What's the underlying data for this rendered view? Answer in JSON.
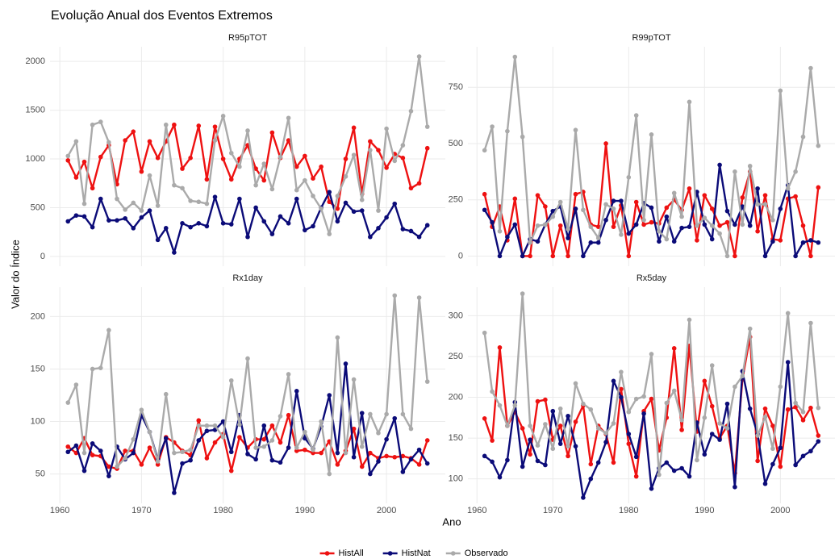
{
  "title": "Evolução Anual dos Eventos Extremos",
  "x_label": "Ano",
  "y_label": "Valor do Índice",
  "chart_data": [
    {
      "type": "line",
      "title": "R95pTOT",
      "x": [
        1961,
        1962,
        1963,
        1964,
        1965,
        1966,
        1967,
        1968,
        1969,
        1970,
        1971,
        1972,
        1973,
        1974,
        1975,
        1976,
        1977,
        1978,
        1979,
        1980,
        1981,
        1982,
        1983,
        1984,
        1985,
        1986,
        1987,
        1988,
        1989,
        1990,
        1991,
        1992,
        1993,
        1994,
        1995,
        1996,
        1997,
        1998,
        1999,
        2000,
        2001,
        2002,
        2003,
        2004,
        2005
      ],
      "xlim": [
        1958.8,
        2007.2
      ],
      "xticks": [
        1960,
        1970,
        1980,
        1990,
        2000
      ],
      "ylim": [
        -100,
        2150
      ],
      "yticks": [
        0,
        500,
        1000,
        1500,
        2000
      ],
      "series": [
        {
          "name": "HistAll",
          "color": "#ee1111",
          "values": [
            985,
            810,
            970,
            700,
            1020,
            1140,
            740,
            1190,
            1280,
            870,
            1180,
            1010,
            1180,
            1350,
            900,
            1010,
            1340,
            790,
            1330,
            1000,
            790,
            1000,
            1140,
            900,
            780,
            1270,
            1010,
            1190,
            920,
            1030,
            800,
            920,
            560,
            490,
            1000,
            1320,
            640,
            1180,
            1090,
            910,
            1050,
            1010,
            700,
            750,
            1110
          ]
        },
        {
          "name": "HistNat",
          "color": "#0b0b78",
          "values": [
            360,
            420,
            410,
            300,
            590,
            370,
            370,
            390,
            290,
            400,
            470,
            170,
            290,
            40,
            340,
            300,
            340,
            310,
            610,
            340,
            330,
            590,
            200,
            500,
            360,
            230,
            410,
            340,
            590,
            270,
            310,
            500,
            660,
            360,
            550,
            460,
            470,
            200,
            290,
            400,
            540,
            280,
            260,
            200,
            320
          ]
        },
        {
          "name": "Observado",
          "color": "#aaaaaa",
          "values": [
            1030,
            1180,
            540,
            1350,
            1380,
            1170,
            590,
            480,
            550,
            470,
            830,
            520,
            1350,
            730,
            700,
            570,
            560,
            540,
            1190,
            1440,
            1060,
            920,
            1290,
            730,
            950,
            690,
            1020,
            1420,
            680,
            780,
            620,
            490,
            230,
            620,
            820,
            1040,
            580,
            1090,
            470,
            1310,
            980,
            1140,
            1490,
            2050,
            1330
          ]
        }
      ]
    },
    {
      "type": "line",
      "title": "R99pTOT",
      "x": [
        1961,
        1962,
        1963,
        1964,
        1965,
        1966,
        1967,
        1968,
        1969,
        1970,
        1971,
        1972,
        1973,
        1974,
        1975,
        1976,
        1977,
        1978,
        1979,
        1980,
        1981,
        1982,
        1983,
        1984,
        1985,
        1986,
        1987,
        1988,
        1989,
        1990,
        1991,
        1992,
        1993,
        1994,
        1995,
        1996,
        1997,
        1998,
        1999,
        2000,
        2001,
        2002,
        2003,
        2004,
        2005
      ],
      "xlim": [
        1958.8,
        2007.2
      ],
      "xticks": [
        1960,
        1970,
        1980,
        1990,
        2000
      ],
      "ylim": [
        -45,
        930
      ],
      "yticks": [
        0,
        250,
        500,
        750
      ],
      "series": [
        {
          "name": "HistAll",
          "color": "#ee1111",
          "values": [
            275,
            130,
            220,
            70,
            255,
            0,
            0,
            270,
            220,
            0,
            135,
            0,
            275,
            285,
            140,
            130,
            500,
            130,
            225,
            0,
            240,
            140,
            150,
            145,
            215,
            250,
            205,
            300,
            70,
            270,
            210,
            135,
            150,
            0,
            260,
            375,
            110,
            270,
            75,
            70,
            255,
            265,
            135,
            0,
            305
          ]
        },
        {
          "name": "HistNat",
          "color": "#0b0b78",
          "values": [
            205,
            150,
            0,
            85,
            140,
            0,
            75,
            65,
            140,
            200,
            220,
            80,
            210,
            0,
            60,
            60,
            160,
            245,
            245,
            100,
            140,
            235,
            215,
            65,
            175,
            65,
            125,
            130,
            285,
            140,
            75,
            405,
            200,
            140,
            220,
            135,
            300,
            0,
            65,
            210,
            315,
            0,
            60,
            70,
            60
          ]
        },
        {
          "name": "Observado",
          "color": "#aaaaaa",
          "values": [
            470,
            575,
            110,
            555,
            885,
            530,
            60,
            135,
            140,
            175,
            240,
            120,
            560,
            205,
            130,
            80,
            230,
            210,
            95,
            350,
            625,
            160,
            540,
            110,
            75,
            280,
            175,
            685,
            135,
            170,
            135,
            100,
            0,
            375,
            140,
            400,
            230,
            230,
            160,
            735,
            300,
            375,
            530,
            835,
            490
          ]
        }
      ]
    },
    {
      "type": "line",
      "title": "Rx1day",
      "x": [
        1961,
        1962,
        1963,
        1964,
        1965,
        1966,
        1967,
        1968,
        1969,
        1970,
        1971,
        1972,
        1973,
        1974,
        1975,
        1976,
        1977,
        1978,
        1979,
        1980,
        1981,
        1982,
        1983,
        1984,
        1985,
        1986,
        1987,
        1988,
        1989,
        1990,
        1991,
        1992,
        1993,
        1994,
        1995,
        1996,
        1997,
        1998,
        1999,
        2000,
        2001,
        2002,
        2003,
        2004,
        2005
      ],
      "xlim": [
        1958.8,
        2007.2
      ],
      "xticks": [
        1960,
        1970,
        1980,
        1990,
        2000
      ],
      "ylim": [
        22,
        228
      ],
      "yticks": [
        50,
        100,
        150,
        200
      ],
      "series": [
        {
          "name": "HistAll",
          "color": "#ee1111",
          "values": [
            76,
            70,
            84,
            68,
            67,
            57,
            55,
            72,
            72,
            59,
            75,
            59,
            85,
            80,
            72,
            68,
            101,
            65,
            80,
            88,
            53,
            85,
            75,
            83,
            83,
            96,
            80,
            106,
            72,
            73,
            70,
            70,
            81,
            59,
            72,
            93,
            57,
            70,
            65,
            67,
            66,
            67,
            65,
            59,
            82
          ]
        },
        {
          "name": "HistNat",
          "color": "#0b0b78",
          "values": [
            71,
            77,
            53,
            79,
            72,
            48,
            76,
            64,
            70,
            106,
            90,
            64,
            84,
            32,
            60,
            63,
            82,
            91,
            92,
            100,
            71,
            106,
            69,
            64,
            96,
            63,
            61,
            75,
            129,
            84,
            74,
            95,
            125,
            70,
            155,
            66,
            108,
            50,
            62,
            83,
            103,
            52,
            64,
            73,
            60
          ]
        },
        {
          "name": "Observado",
          "color": "#aaaaaa",
          "values": [
            118,
            135,
            70,
            150,
            151,
            187,
            57,
            65,
            83,
            111,
            90,
            62,
            126,
            70,
            71,
            73,
            96,
            96,
            96,
            85,
            139,
            97,
            160,
            75,
            76,
            82,
            105,
            145,
            75,
            90,
            73,
            100,
            50,
            180,
            70,
            140,
            76,
            107,
            89,
            107,
            220,
            107,
            93,
            218,
            138
          ]
        }
      ]
    },
    {
      "type": "line",
      "title": "Rx5day",
      "x": [
        1961,
        1962,
        1963,
        1964,
        1965,
        1966,
        1967,
        1968,
        1969,
        1970,
        1971,
        1972,
        1973,
        1974,
        1975,
        1976,
        1977,
        1978,
        1979,
        1980,
        1981,
        1982,
        1983,
        1984,
        1985,
        1986,
        1987,
        1988,
        1989,
        1990,
        1991,
        1992,
        1993,
        1994,
        1995,
        1996,
        1997,
        1998,
        1999,
        2000,
        2001,
        2002,
        2003,
        2004,
        2005
      ],
      "xlim": [
        1958.8,
        2007.2
      ],
      "xticks": [
        1960,
        1970,
        1980,
        1990,
        2000
      ],
      "ylim": [
        70,
        335
      ],
      "yticks": [
        100,
        150,
        200,
        250,
        300
      ],
      "series": [
        {
          "name": "HistAll",
          "color": "#ee1111",
          "values": [
            174,
            147,
            261,
            165,
            182,
            162,
            130,
            195,
            197,
            148,
            165,
            128,
            170,
            190,
            118,
            165,
            155,
            120,
            210,
            143,
            103,
            183,
            198,
            135,
            175,
            260,
            160,
            263,
            158,
            220,
            189,
            150,
            165,
            107,
            222,
            274,
            122,
            186,
            165,
            115,
            185,
            188,
            172,
            187,
            153
          ]
        },
        {
          "name": "HistNat",
          "color": "#0b0b78",
          "values": [
            128,
            121,
            102,
            123,
            194,
            115,
            148,
            122,
            117,
            183,
            143,
            177,
            140,
            77,
            100,
            120,
            145,
            220,
            200,
            155,
            127,
            180,
            88,
            113,
            120,
            110,
            113,
            103,
            169,
            130,
            155,
            148,
            192,
            90,
            232,
            186,
            155,
            94,
            118,
            138,
            243,
            117,
            128,
            134,
            146
          ]
        },
        {
          "name": "Observado",
          "color": "#aaaaaa",
          "values": [
            279,
            207,
            190,
            165,
            190,
            327,
            165,
            141,
            167,
            137,
            186,
            140,
            217,
            192,
            185,
            162,
            156,
            168,
            231,
            182,
            198,
            201,
            253,
            105,
            193,
            208,
            172,
            295,
            123,
            175,
            239,
            168,
            162,
            213,
            226,
            284,
            153,
            176,
            137,
            213,
            303,
            193,
            182,
            291,
            187
          ]
        }
      ]
    }
  ]
}
